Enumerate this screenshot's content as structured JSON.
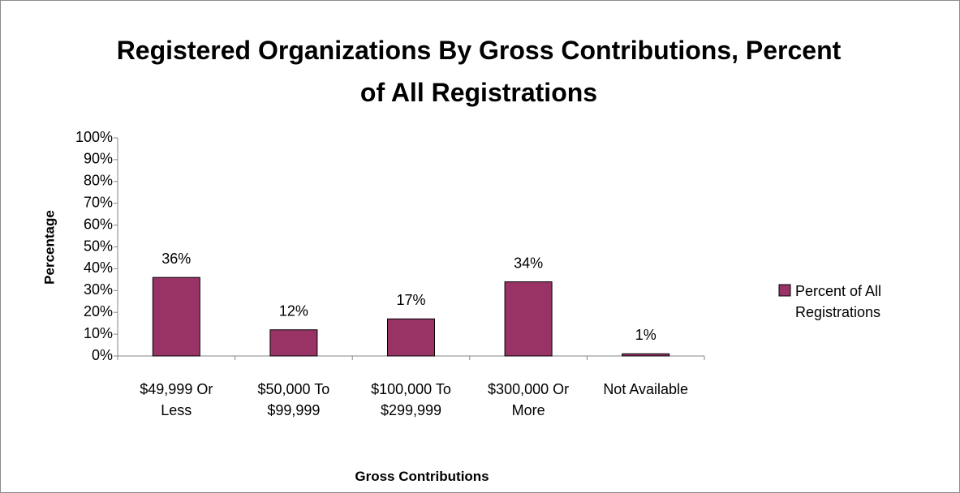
{
  "chart_data": {
    "type": "bar",
    "title": "Registered Organizations By Gross Contributions, Percent of All Registrations",
    "x_label": "Gross Contributions",
    "y_label": "Percentage",
    "categories": [
      "$49,999 Or Less",
      "$50,000 To $99,999",
      "$100,000 To $299,999",
      "$300,000 Or More",
      "Not Available"
    ],
    "series": [
      {
        "name": "Percent of All Registrations",
        "color": "#993366",
        "values": [
          36,
          12,
          17,
          34,
          1
        ],
        "value_labels": [
          "36%",
          "12%",
          "17%",
          "34%",
          "1%"
        ]
      }
    ],
    "ylim": [
      0,
      100
    ],
    "yticks": [
      {
        "value": 0,
        "label": "0%"
      },
      {
        "value": 10,
        "label": "10%"
      },
      {
        "value": 20,
        "label": "20%"
      },
      {
        "value": 30,
        "label": "30%"
      },
      {
        "value": 40,
        "label": "40%"
      },
      {
        "value": 50,
        "label": "50%"
      },
      {
        "value": 60,
        "label": "60%"
      },
      {
        "value": 70,
        "label": "70%"
      },
      {
        "value": 80,
        "label": "80%"
      },
      {
        "value": 90,
        "label": "90%"
      },
      {
        "value": 100,
        "label": "100%"
      }
    ],
    "grid": false,
    "legend": "right"
  }
}
